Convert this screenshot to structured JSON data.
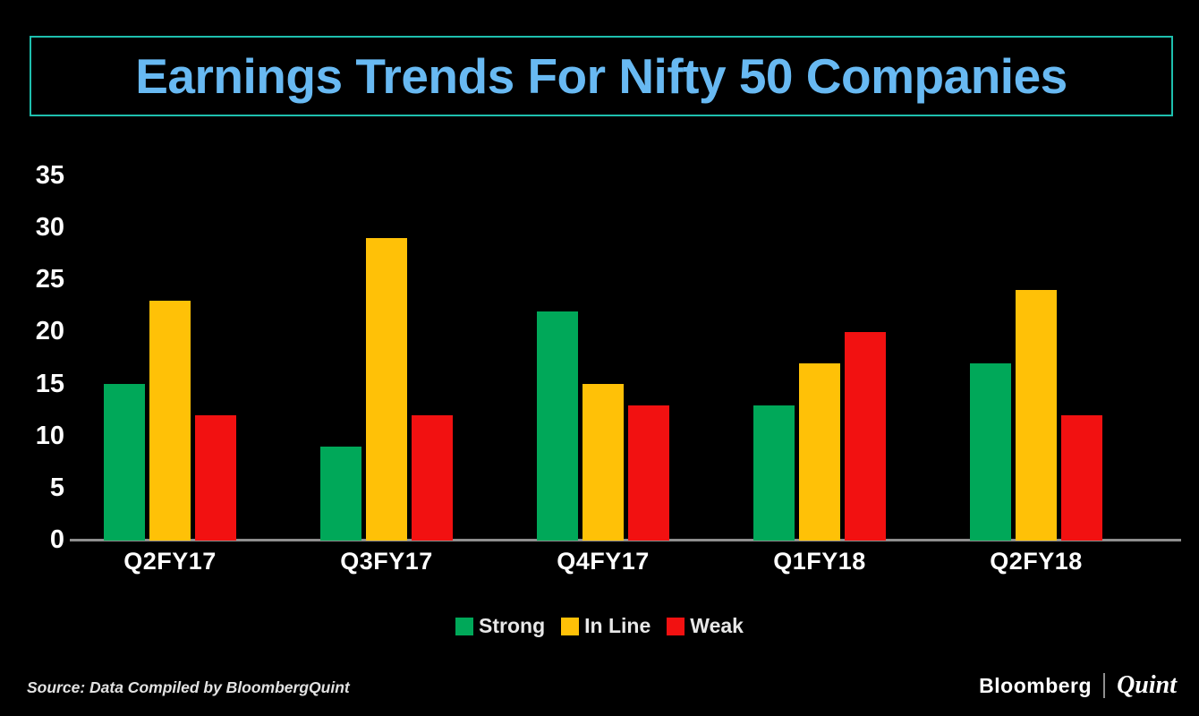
{
  "title": "Earnings Trends For Nifty 50 Companies",
  "colors": {
    "background": "#000000",
    "title_text": "#68B9F2",
    "title_border": "#1EBFAE",
    "axis_line": "#8E8E8E",
    "axis_text": "#FFFFFF",
    "strong": "#00A859",
    "in_line": "#FFC107",
    "weak": "#F21111"
  },
  "chart_data": {
    "type": "bar",
    "title": "Earnings Trends For Nifty 50 Companies",
    "categories": [
      "Q2FY17",
      "Q3FY17",
      "Q4FY17",
      "Q1FY18",
      "Q2FY18"
    ],
    "series": [
      {
        "name": "Strong",
        "color_key": "strong",
        "values": [
          15,
          9,
          22,
          13,
          17
        ]
      },
      {
        "name": "In Line",
        "color_key": "in_line",
        "values": [
          23,
          29,
          15,
          17,
          24
        ]
      },
      {
        "name": "Weak",
        "color_key": "weak",
        "values": [
          12,
          12,
          13,
          20,
          12
        ]
      }
    ],
    "xlabel": "",
    "ylabel": "",
    "ylim": [
      0,
      35
    ],
    "yticks": [
      35,
      30,
      25,
      20,
      15,
      10,
      5,
      0
    ],
    "grid": false,
    "legend_position": "bottom"
  },
  "legend": {
    "items": [
      {
        "label": "Strong",
        "color_key": "strong"
      },
      {
        "label": "In Line",
        "color_key": "in_line"
      },
      {
        "label": "Weak",
        "color_key": "weak"
      }
    ]
  },
  "source_note": "Source: Data Compiled by BloombergQuint",
  "branding": {
    "bloomberg": "Bloomberg",
    "separator": "|",
    "quint": "Quint"
  }
}
